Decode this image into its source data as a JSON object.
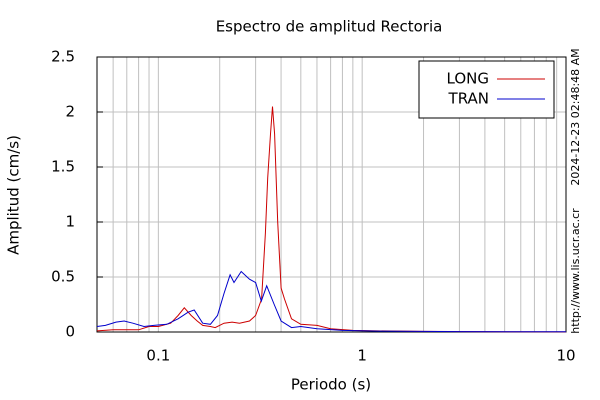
{
  "chart_data": {
    "type": "line",
    "title": "Espectro de amplitud Rectoria",
    "x_label": "Periodo (s)",
    "y_label": "Amplitud (cm/s)",
    "timestamp": "2024-12-23 02:48:48 AM",
    "source": "http://www.lis.ucr.ac.cr",
    "log_x": true,
    "grid": true,
    "legend_position": "upper right",
    "xlim": [
      0.05,
      10
    ],
    "ylim": [
      0,
      2.5
    ],
    "xticks": [
      0.1,
      1,
      10
    ],
    "xminorticks": [
      0.06,
      0.07,
      0.08,
      0.09,
      0.2,
      0.3,
      0.4,
      0.5,
      0.6,
      0.7,
      0.8,
      0.9,
      2,
      3,
      4,
      5,
      6,
      7,
      8,
      9
    ],
    "yticks": [
      0,
      0.5,
      1,
      1.5,
      2,
      2.5
    ],
    "series": [
      {
        "name": "LONG",
        "color": "#cc0000",
        "x": [
          0.05,
          0.06,
          0.08,
          0.09,
          0.1,
          0.115,
          0.125,
          0.134,
          0.145,
          0.155,
          0.165,
          0.18,
          0.19,
          0.21,
          0.23,
          0.25,
          0.28,
          0.3,
          0.321,
          0.335,
          0.344,
          0.355,
          0.363,
          0.372,
          0.385,
          0.4,
          0.416,
          0.45,
          0.5,
          0.6,
          0.7,
          0.9,
          1.2,
          2,
          5,
          10
        ],
        "values": [
          0.01,
          0.02,
          0.02,
          0.05,
          0.05,
          0.08,
          0.15,
          0.22,
          0.15,
          0.1,
          0.06,
          0.05,
          0.04,
          0.08,
          0.09,
          0.08,
          0.1,
          0.15,
          0.3,
          0.9,
          1.4,
          1.8,
          2.05,
          1.8,
          1.0,
          0.4,
          0.3,
          0.12,
          0.07,
          0.06,
          0.03,
          0.015,
          0.01,
          0.005,
          0.002,
          0.001
        ]
      },
      {
        "name": "TRAN",
        "color": "#0000cc",
        "x": [
          0.05,
          0.055,
          0.062,
          0.068,
          0.075,
          0.085,
          0.095,
          0.11,
          0.125,
          0.14,
          0.15,
          0.165,
          0.18,
          0.195,
          0.21,
          0.225,
          0.235,
          0.255,
          0.28,
          0.3,
          0.32,
          0.34,
          0.37,
          0.4,
          0.45,
          0.5,
          0.6,
          0.8,
          1.2,
          3,
          10
        ],
        "values": [
          0.05,
          0.06,
          0.09,
          0.1,
          0.08,
          0.05,
          0.06,
          0.07,
          0.12,
          0.18,
          0.2,
          0.08,
          0.07,
          0.15,
          0.35,
          0.52,
          0.45,
          0.55,
          0.48,
          0.45,
          0.28,
          0.42,
          0.25,
          0.1,
          0.04,
          0.05,
          0.03,
          0.015,
          0.008,
          0.004,
          0.002
        ]
      }
    ]
  }
}
